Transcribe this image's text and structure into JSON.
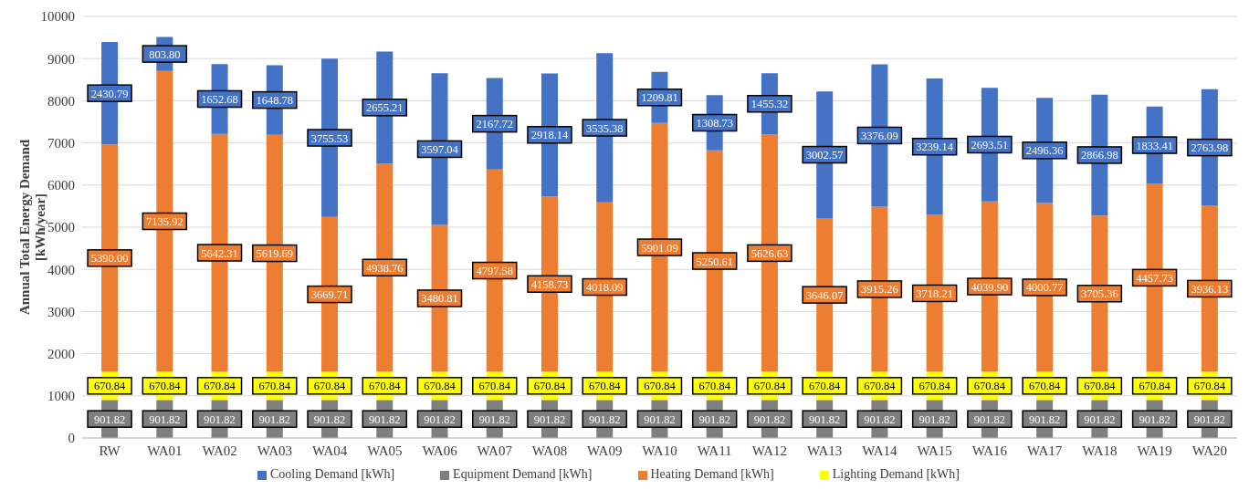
{
  "chart_data": {
    "type": "bar",
    "stacked": true,
    "ylabel": "Annual Total Energy Demand [kWh/year]",
    "categories": [
      "RW",
      "WA01",
      "WA02",
      "WA03",
      "WA04",
      "WA05",
      "WA06",
      "WA07",
      "WA08",
      "WA09",
      "WA10",
      "WA11",
      "WA12",
      "WA13",
      "WA14",
      "WA15",
      "WA16",
      "WA17",
      "WA18",
      "WA19",
      "WA20"
    ],
    "series": [
      {
        "name": "Equipment Demand [kWh]",
        "color": "#7f7f7f",
        "values": [
          901.82,
          901.82,
          901.82,
          901.82,
          901.82,
          901.82,
          901.82,
          901.82,
          901.82,
          901.82,
          901.82,
          901.82,
          901.82,
          901.82,
          901.82,
          901.82,
          901.82,
          901.82,
          901.82,
          901.82,
          901.82
        ],
        "value_labels": [
          "901.82",
          "901.82",
          "901.82",
          "901.82",
          "901.82",
          "901.82",
          "901.82",
          "901.82",
          "901.82",
          "901.82",
          "901.82",
          "901.82",
          "901.82",
          "901.82",
          "901.82",
          "901.82",
          "901.82",
          "901.82",
          "901.82",
          "901.82",
          "901.82"
        ]
      },
      {
        "name": "Lighting Demand [kWh]",
        "color": "#ffff00",
        "values": [
          670.84,
          670.84,
          670.84,
          670.84,
          670.84,
          670.84,
          670.84,
          670.84,
          670.84,
          670.84,
          670.84,
          670.84,
          670.84,
          670.84,
          670.84,
          670.84,
          670.84,
          670.84,
          670.84,
          670.84,
          670.84
        ],
        "value_labels": [
          "670.84",
          "670.84",
          "670.84",
          "670.84",
          "670.84",
          "670.84",
          "670.84",
          "670.84",
          "670.84",
          "670.84",
          "670.84",
          "670.84",
          "670.84",
          "670.84",
          "670.84",
          "670.84",
          "670.84",
          "670.84",
          "670.84",
          "670.84",
          "670.84"
        ]
      },
      {
        "name": "Heating Demand [kWh]",
        "color": "#ed7d31",
        "values": [
          5390.0,
          7135.92,
          5642.31,
          5619.69,
          3669.71,
          4938.76,
          3480.81,
          4797.58,
          4158.73,
          4018.09,
          5901.09,
          5250.61,
          5626.63,
          3646.07,
          3915.26,
          3718.21,
          4039.9,
          4000.77,
          3705.36,
          4457.73,
          3936.13
        ],
        "value_labels": [
          "5390.00",
          "7135.92",
          "5642.31",
          "5619.69",
          "3669.71",
          "4938.76",
          "3480.81",
          "4797.58",
          "4158.73",
          "4018.09",
          "5901.09",
          "5250.61",
          "5626.63",
          "3646.07",
          "3915.26",
          "3718.21",
          "4039.90",
          "4000.77",
          "3705.36",
          "4457.73",
          "3936.13"
        ]
      },
      {
        "name": "Cooling Demand [kWh]",
        "color": "#4472c4",
        "values": [
          2430.79,
          803.8,
          1652.68,
          1648.78,
          3755.53,
          2655.21,
          3597.04,
          2167.72,
          2918.14,
          3535.38,
          1209.81,
          1308.73,
          1455.32,
          3002.57,
          3376.09,
          3239.14,
          2693.51,
          2496.36,
          2866.98,
          1833.41,
          2763.98
        ],
        "value_labels": [
          "2430.79",
          "803.80",
          "1652.68",
          "1648.78",
          "3755.53",
          "2655.21",
          "3597.04",
          "2167.72",
          "2918.14",
          "3535.38",
          "1209.81",
          "1308.73",
          "1455.32",
          "3002.57",
          "3376.09",
          "3239.14",
          "2693.51",
          "2496.36",
          "2866.98",
          "1833.41",
          "2763.98"
        ]
      }
    ],
    "ylim": [
      0,
      10000
    ],
    "yticks": [
      0,
      1000,
      2000,
      3000,
      4000,
      5000,
      6000,
      7000,
      8000,
      9000,
      10000
    ],
    "grid": "y",
    "legend": "bottom"
  }
}
